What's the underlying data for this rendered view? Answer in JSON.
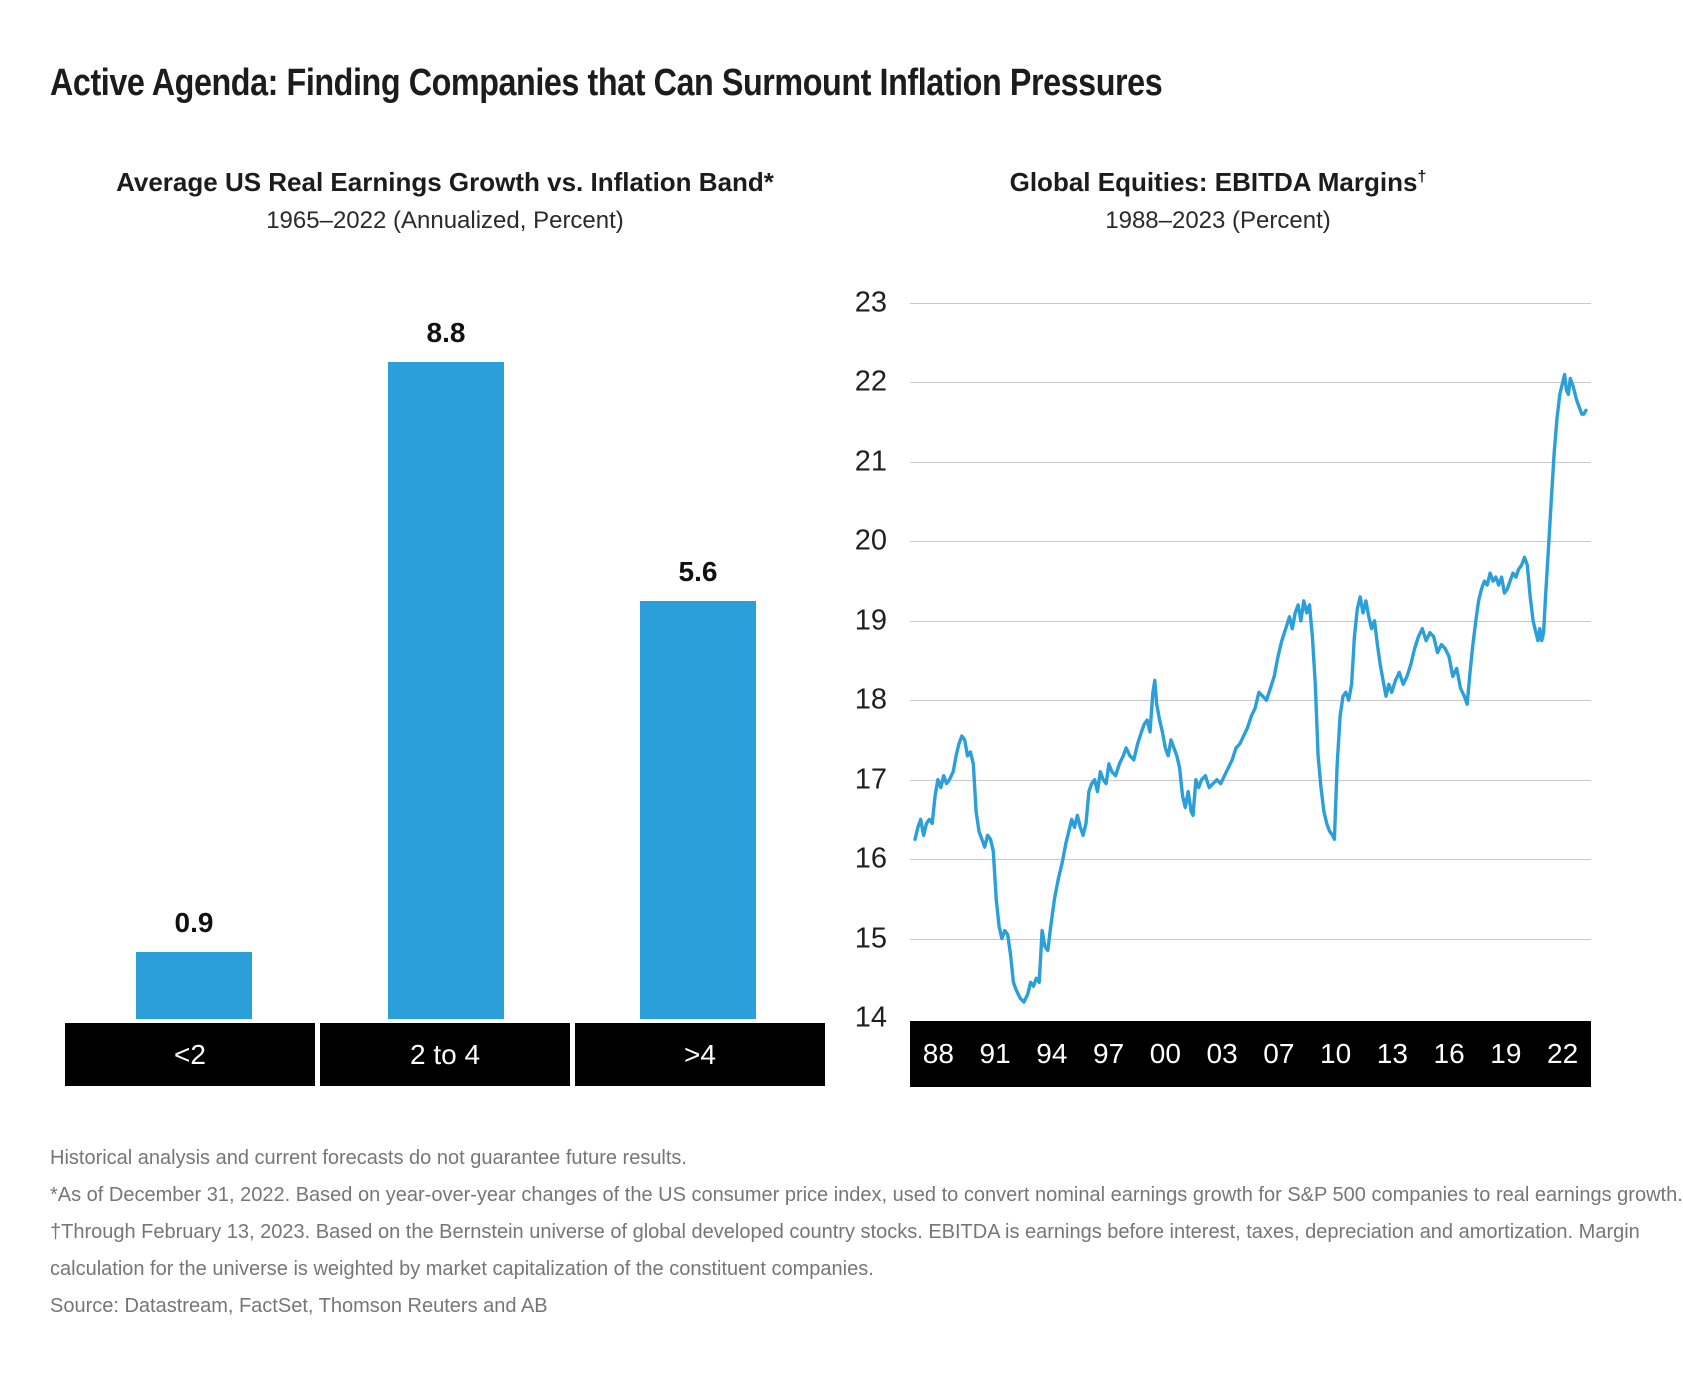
{
  "page": {
    "title": "Active Agenda: Finding Companies that Can Surmount Inflation Pressures"
  },
  "colors": {
    "accent_blue": "#2B9FD9",
    "band_black": "#000000",
    "gridline_gray": "#c9c9c9",
    "footnote_gray": "#767676"
  },
  "footnotes": {
    "lines": [
      "Historical analysis and current forecasts do not guarantee future results.",
      "*As of December 31, 2022. Based on year-over-year changes of the US consumer price index, used to convert nominal earnings growth for S&P 500 companies to real earnings growth.",
      "†Through February 13, 2023. Based on the Bernstein universe of global developed country stocks. EBITDA is earnings before interest, taxes, depreciation and amortization. Margin",
      "calculation for the universe is weighted by market capitalization of the constituent companies.",
      "Source: Datastream, FactSet, Thomson Reuters and AB"
    ]
  },
  "chart_data": [
    {
      "type": "bar",
      "title": "Average US Real Earnings Growth vs. Inflation Band*",
      "subtitle": "1965–2022 (Annualized, Percent)",
      "categories": [
        "<2",
        "2 to 4",
        ">4"
      ],
      "values": [
        0.9,
        8.8,
        5.6
      ],
      "bar_color": "#2B9FD9",
      "value_axis_hidden": true,
      "xlabel": "",
      "ylabel": ""
    },
    {
      "type": "line",
      "title": "Global Equities: EBITDA Margins†",
      "title_text": "Global Equities: EBITDA Margins",
      "title_sup": "†",
      "subtitle": "1988–2023 (Percent)",
      "ylim": [
        14,
        23
      ],
      "yticks": [
        14,
        15,
        16,
        17,
        18,
        19,
        20,
        21,
        22,
        23
      ],
      "xtick_labels": [
        "88",
        "91",
        "94",
        "97",
        "00",
        "03",
        "07",
        "10",
        "13",
        "16",
        "19",
        "22"
      ],
      "x_range": [
        1988.0,
        2023.12
      ],
      "grid": "horizontal",
      "line_color": "#2B9FD9",
      "series": [
        {
          "name": "Global equities EBITDA margin (%)",
          "points": [
            [
              1988.0,
              16.25
            ],
            [
              1988.15,
              16.4
            ],
            [
              1988.3,
              16.5
            ],
            [
              1988.45,
              16.3
            ],
            [
              1988.6,
              16.45
            ],
            [
              1988.75,
              16.5
            ],
            [
              1988.9,
              16.45
            ],
            [
              1989.05,
              16.8
            ],
            [
              1989.2,
              17.0
            ],
            [
              1989.35,
              16.9
            ],
            [
              1989.5,
              17.05
            ],
            [
              1989.65,
              16.95
            ],
            [
              1989.8,
              17.0
            ],
            [
              1990.0,
              17.1
            ],
            [
              1990.15,
              17.3
            ],
            [
              1990.3,
              17.45
            ],
            [
              1990.45,
              17.55
            ],
            [
              1990.6,
              17.5
            ],
            [
              1990.75,
              17.3
            ],
            [
              1990.9,
              17.35
            ],
            [
              1991.05,
              17.2
            ],
            [
              1991.2,
              16.6
            ],
            [
              1991.35,
              16.35
            ],
            [
              1991.5,
              16.25
            ],
            [
              1991.65,
              16.15
            ],
            [
              1991.8,
              16.3
            ],
            [
              1991.95,
              16.25
            ],
            [
              1992.1,
              16.1
            ],
            [
              1992.25,
              15.5
            ],
            [
              1992.4,
              15.15
            ],
            [
              1992.55,
              15.0
            ],
            [
              1992.7,
              15.1
            ],
            [
              1992.85,
              15.05
            ],
            [
              1993.0,
              14.8
            ],
            [
              1993.15,
              14.45
            ],
            [
              1993.3,
              14.35
            ],
            [
              1993.5,
              14.25
            ],
            [
              1993.7,
              14.2
            ],
            [
              1993.9,
              14.3
            ],
            [
              1994.05,
              14.45
            ],
            [
              1994.2,
              14.4
            ],
            [
              1994.35,
              14.5
            ],
            [
              1994.5,
              14.45
            ],
            [
              1994.65,
              15.1
            ],
            [
              1994.8,
              14.9
            ],
            [
              1994.95,
              14.85
            ],
            [
              1995.1,
              15.15
            ],
            [
              1995.3,
              15.5
            ],
            [
              1995.5,
              15.75
            ],
            [
              1995.7,
              15.95
            ],
            [
              1995.9,
              16.2
            ],
            [
              1996.05,
              16.35
            ],
            [
              1996.2,
              16.5
            ],
            [
              1996.35,
              16.4
            ],
            [
              1996.5,
              16.55
            ],
            [
              1996.65,
              16.4
            ],
            [
              1996.8,
              16.3
            ],
            [
              1996.95,
              16.45
            ],
            [
              1997.1,
              16.85
            ],
            [
              1997.25,
              16.95
            ],
            [
              1997.4,
              17.0
            ],
            [
              1997.55,
              16.85
            ],
            [
              1997.7,
              17.1
            ],
            [
              1997.85,
              17.0
            ],
            [
              1998.0,
              16.95
            ],
            [
              1998.15,
              17.2
            ],
            [
              1998.3,
              17.1
            ],
            [
              1998.5,
              17.05
            ],
            [
              1998.7,
              17.2
            ],
            [
              1998.9,
              17.3
            ],
            [
              1999.05,
              17.4
            ],
            [
              1999.25,
              17.3
            ],
            [
              1999.45,
              17.25
            ],
            [
              1999.65,
              17.45
            ],
            [
              1999.85,
              17.6
            ],
            [
              2000.0,
              17.7
            ],
            [
              2000.15,
              17.75
            ],
            [
              2000.3,
              17.6
            ],
            [
              2000.45,
              18.1
            ],
            [
              2000.55,
              18.25
            ],
            [
              2000.65,
              17.95
            ],
            [
              2000.8,
              17.75
            ],
            [
              2000.95,
              17.6
            ],
            [
              2001.1,
              17.4
            ],
            [
              2001.25,
              17.3
            ],
            [
              2001.4,
              17.5
            ],
            [
              2001.55,
              17.4
            ],
            [
              2001.7,
              17.3
            ],
            [
              2001.85,
              17.15
            ],
            [
              2002.0,
              16.8
            ],
            [
              2002.15,
              16.65
            ],
            [
              2002.3,
              16.85
            ],
            [
              2002.45,
              16.6
            ],
            [
              2002.55,
              16.55
            ],
            [
              2002.7,
              17.0
            ],
            [
              2002.85,
              16.9
            ],
            [
              2003.0,
              17.0
            ],
            [
              2003.2,
              17.05
            ],
            [
              2003.4,
              16.9
            ],
            [
              2003.6,
              16.95
            ],
            [
              2003.8,
              17.0
            ],
            [
              2004.0,
              16.95
            ],
            [
              2004.2,
              17.05
            ],
            [
              2004.4,
              17.15
            ],
            [
              2004.6,
              17.25
            ],
            [
              2004.8,
              17.4
            ],
            [
              2005.0,
              17.45
            ],
            [
              2005.2,
              17.55
            ],
            [
              2005.4,
              17.65
            ],
            [
              2005.6,
              17.8
            ],
            [
              2005.8,
              17.9
            ],
            [
              2006.0,
              18.1
            ],
            [
              2006.2,
              18.05
            ],
            [
              2006.4,
              18.0
            ],
            [
              2006.6,
              18.15
            ],
            [
              2006.8,
              18.3
            ],
            [
              2007.0,
              18.55
            ],
            [
              2007.2,
              18.75
            ],
            [
              2007.4,
              18.9
            ],
            [
              2007.6,
              19.05
            ],
            [
              2007.75,
              18.9
            ],
            [
              2007.9,
              19.1
            ],
            [
              2008.05,
              19.2
            ],
            [
              2008.2,
              19.0
            ],
            [
              2008.35,
              19.25
            ],
            [
              2008.5,
              19.1
            ],
            [
              2008.65,
              19.2
            ],
            [
              2008.8,
              18.8
            ],
            [
              2008.95,
              18.2
            ],
            [
              2009.1,
              17.3
            ],
            [
              2009.25,
              16.9
            ],
            [
              2009.4,
              16.6
            ],
            [
              2009.55,
              16.45
            ],
            [
              2009.7,
              16.35
            ],
            [
              2009.85,
              16.3
            ],
            [
              2009.95,
              16.25
            ],
            [
              2010.1,
              17.2
            ],
            [
              2010.25,
              17.8
            ],
            [
              2010.4,
              18.05
            ],
            [
              2010.55,
              18.1
            ],
            [
              2010.7,
              18.0
            ],
            [
              2010.85,
              18.2
            ],
            [
              2011.0,
              18.8
            ],
            [
              2011.15,
              19.15
            ],
            [
              2011.3,
              19.3
            ],
            [
              2011.45,
              19.1
            ],
            [
              2011.6,
              19.25
            ],
            [
              2011.75,
              19.05
            ],
            [
              2011.9,
              18.9
            ],
            [
              2012.05,
              19.0
            ],
            [
              2012.2,
              18.7
            ],
            [
              2012.35,
              18.45
            ],
            [
              2012.5,
              18.25
            ],
            [
              2012.65,
              18.05
            ],
            [
              2012.8,
              18.2
            ],
            [
              2012.95,
              18.1
            ],
            [
              2013.15,
              18.25
            ],
            [
              2013.35,
              18.35
            ],
            [
              2013.55,
              18.2
            ],
            [
              2013.75,
              18.3
            ],
            [
              2013.95,
              18.45
            ],
            [
              2014.15,
              18.65
            ],
            [
              2014.35,
              18.8
            ],
            [
              2014.55,
              18.9
            ],
            [
              2014.75,
              18.75
            ],
            [
              2014.95,
              18.85
            ],
            [
              2015.15,
              18.8
            ],
            [
              2015.35,
              18.6
            ],
            [
              2015.55,
              18.7
            ],
            [
              2015.75,
              18.65
            ],
            [
              2015.95,
              18.55
            ],
            [
              2016.15,
              18.3
            ],
            [
              2016.35,
              18.4
            ],
            [
              2016.55,
              18.15
            ],
            [
              2016.75,
              18.05
            ],
            [
              2016.9,
              17.95
            ],
            [
              2017.05,
              18.35
            ],
            [
              2017.2,
              18.7
            ],
            [
              2017.35,
              19.0
            ],
            [
              2017.5,
              19.25
            ],
            [
              2017.65,
              19.4
            ],
            [
              2017.8,
              19.5
            ],
            [
              2017.95,
              19.45
            ],
            [
              2018.1,
              19.6
            ],
            [
              2018.25,
              19.5
            ],
            [
              2018.4,
              19.55
            ],
            [
              2018.55,
              19.45
            ],
            [
              2018.7,
              19.55
            ],
            [
              2018.85,
              19.35
            ],
            [
              2019.0,
              19.4
            ],
            [
              2019.15,
              19.5
            ],
            [
              2019.3,
              19.6
            ],
            [
              2019.45,
              19.55
            ],
            [
              2019.6,
              19.65
            ],
            [
              2019.75,
              19.7
            ],
            [
              2019.9,
              19.8
            ],
            [
              2020.05,
              19.7
            ],
            [
              2020.2,
              19.3
            ],
            [
              2020.35,
              19.0
            ],
            [
              2020.5,
              18.85
            ],
            [
              2020.6,
              18.75
            ],
            [
              2020.7,
              18.9
            ],
            [
              2020.8,
              18.75
            ],
            [
              2020.9,
              18.85
            ],
            [
              2021.0,
              19.3
            ],
            [
              2021.15,
              19.9
            ],
            [
              2021.3,
              20.5
            ],
            [
              2021.45,
              21.1
            ],
            [
              2021.6,
              21.55
            ],
            [
              2021.75,
              21.85
            ],
            [
              2021.9,
              22.0
            ],
            [
              2022.0,
              22.1
            ],
            [
              2022.1,
              21.9
            ],
            [
              2022.2,
              21.85
            ],
            [
              2022.3,
              22.05
            ],
            [
              2022.45,
              21.95
            ],
            [
              2022.6,
              21.8
            ],
            [
              2022.75,
              21.7
            ],
            [
              2022.9,
              21.6
            ],
            [
              2023.0,
              21.6
            ],
            [
              2023.12,
              21.65
            ]
          ]
        }
      ]
    }
  ]
}
